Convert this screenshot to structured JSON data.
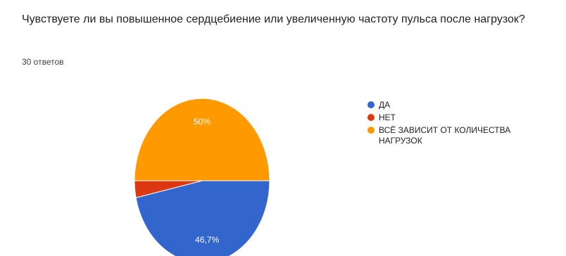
{
  "question": {
    "title": "Чувствуете ли вы повышенное сердцебиение или увеличенную частоту пульса после нагрузок?",
    "responses": "30 ответов"
  },
  "chart_data": {
    "type": "pie",
    "slices": [
      {
        "label": "ДА",
        "value": 46.7,
        "color": "#3366cc",
        "data_label": "46,7%"
      },
      {
        "label": "НЕТ",
        "value": 3.3,
        "color": "#dc3912",
        "data_label": ""
      },
      {
        "label": "ВСЁ ЗАВИСИТ ОТ КОЛИЧЕСТВА НАГРУЗОК",
        "value": 50,
        "color": "#ff9900",
        "data_label": "50%"
      }
    ],
    "legend_position": "right"
  }
}
